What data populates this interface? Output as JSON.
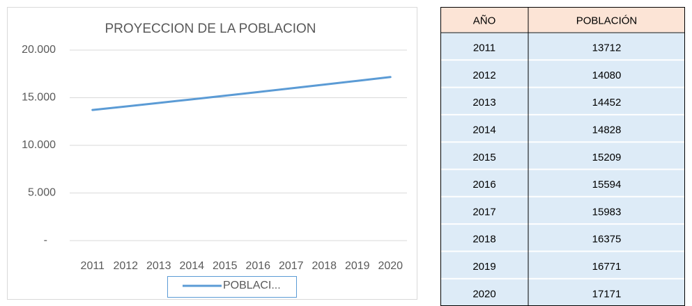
{
  "chart_data": {
    "type": "line",
    "title": "PROYECCION DE LA POBLACION",
    "categories": [
      "2011",
      "2012",
      "2013",
      "2014",
      "2015",
      "2016",
      "2017",
      "2018",
      "2019",
      "2020"
    ],
    "series": [
      {
        "name": "POBLACI...",
        "color": "#5b9bd5",
        "values": [
          13712,
          14080,
          14452,
          14828,
          15209,
          15594,
          15983,
          16375,
          16771,
          17171
        ]
      }
    ],
    "ylim": [
      0,
      20000
    ],
    "yticks": [
      {
        "value": 0,
        "label": "-"
      },
      {
        "value": 5000,
        "label": "5.000"
      },
      {
        "value": 10000,
        "label": "10.000"
      },
      {
        "value": 15000,
        "label": "15.000"
      },
      {
        "value": 20000,
        "label": "20.000"
      }
    ],
    "grid": true,
    "legend": "bottom"
  },
  "table": {
    "header": [
      "AÑO",
      "POBLACIÓN"
    ],
    "rows": [
      [
        2011,
        13712
      ],
      [
        2012,
        14080
      ],
      [
        2013,
        14452
      ],
      [
        2014,
        14828
      ],
      [
        2015,
        15209
      ],
      [
        2016,
        15594
      ],
      [
        2017,
        15983
      ],
      [
        2018,
        16375
      ],
      [
        2019,
        16771
      ],
      [
        2020,
        17171
      ]
    ]
  }
}
